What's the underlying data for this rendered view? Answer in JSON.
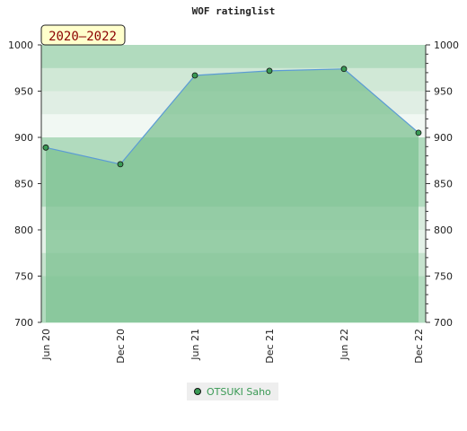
{
  "chart_data": {
    "type": "area",
    "title": "WOF ratinglist",
    "period_label": "2020–2022",
    "x": [
      "Jun 20",
      "Dec 20",
      "Jun 21",
      "Dec 21",
      "Jun 22",
      "Dec 22"
    ],
    "series": [
      {
        "name": "OTSUKI Saho",
        "values": [
          889,
          871,
          967,
          972,
          974,
          905
        ]
      }
    ],
    "ylim": [
      700,
      1000
    ],
    "y_ticks": [
      700,
      750,
      800,
      850,
      900,
      950,
      1000
    ],
    "grid": false,
    "legend_position": "bottom",
    "colors": {
      "area_fill": "#7dc291",
      "line": "#5b9bd5",
      "marker": "#3a9a55",
      "legend_text": "#3a9a55",
      "badge_bg": "#ffffcc",
      "badge_text": "#8b0000"
    }
  }
}
